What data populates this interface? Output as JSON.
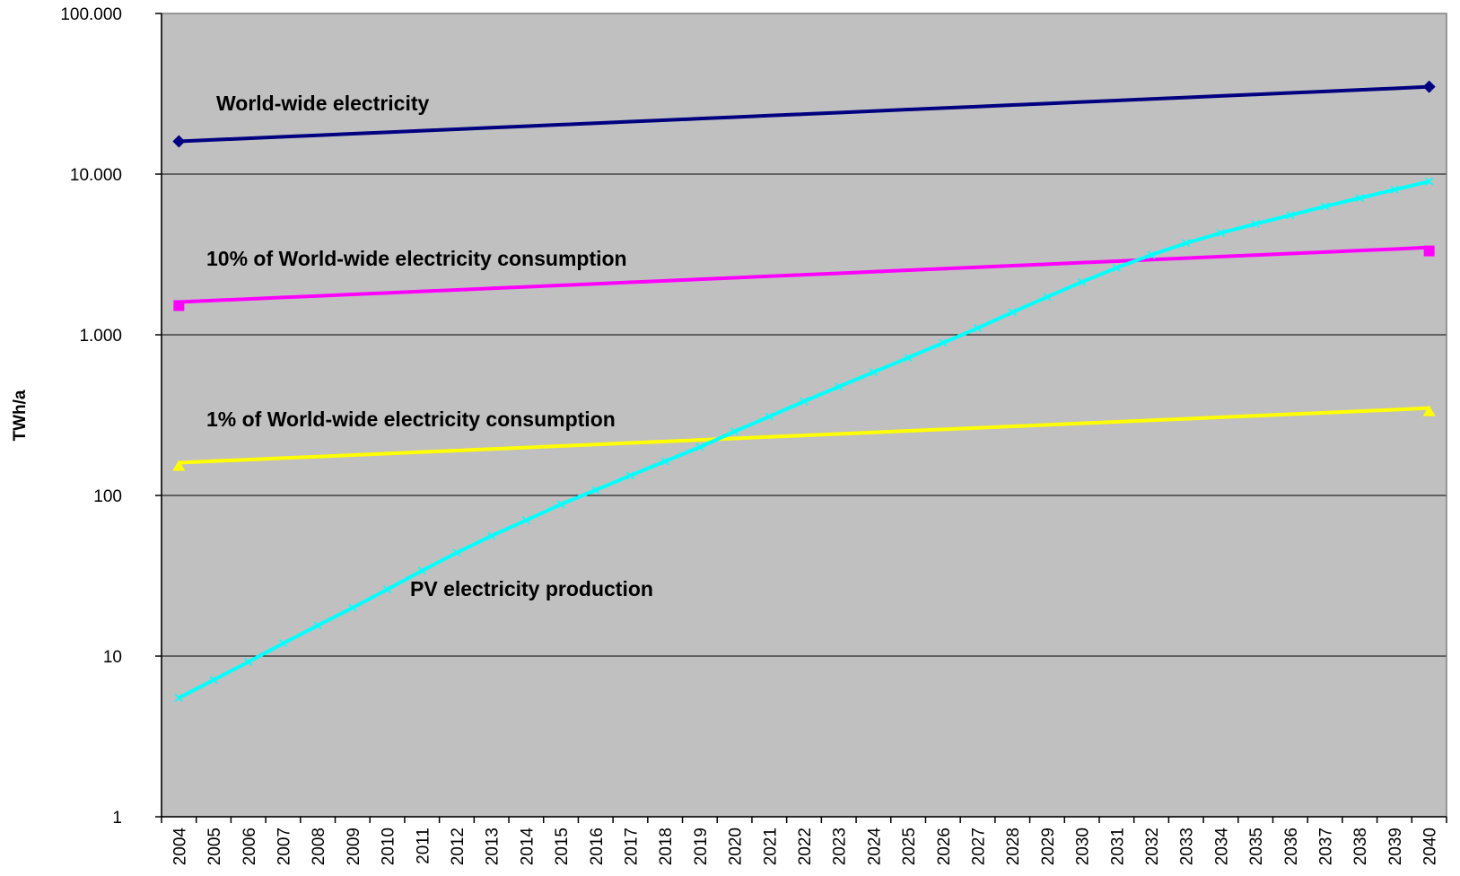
{
  "chart_data": {
    "type": "line",
    "title": "",
    "ylabel": "TWh/a",
    "xlabel": "",
    "yscale": "log",
    "ylim": [
      1,
      100000
    ],
    "ytick_values": [
      1,
      10,
      100,
      1000,
      10000,
      100000
    ],
    "ytick_labels": [
      "1",
      "10",
      "100",
      "1.000",
      "10.000",
      "100.000"
    ],
    "grid": "horizontal",
    "legend": "none",
    "categories": [
      "2004",
      "2005",
      "2006",
      "2007",
      "2008",
      "2009",
      "2010",
      "2011",
      "2012",
      "2013",
      "2014",
      "2015",
      "2016",
      "2017",
      "2018",
      "2019",
      "2020",
      "2021",
      "2022",
      "2023",
      "2024",
      "2025",
      "2026",
      "2027",
      "2028",
      "2029",
      "2030",
      "2031",
      "2032",
      "2033",
      "2034",
      "2035",
      "2036",
      "2037",
      "2038",
      "2039",
      "2040"
    ],
    "series": [
      {
        "name": "World-wide electricity",
        "color": "#000080",
        "marker": "diamond",
        "values": [
          16000,
          16350,
          16710,
          17070,
          17450,
          17830,
          18220,
          18620,
          19030,
          19450,
          19870,
          20310,
          20750,
          21210,
          21670,
          22150,
          22630,
          23130,
          23630,
          24150,
          24680,
          25230,
          25780,
          26340,
          26920,
          27510,
          28110,
          28730,
          29360,
          30010,
          30660,
          31330,
          32020,
          32720,
          33440,
          34180,
          35000
        ]
      },
      {
        "name": "10% of World-wide electricity consumption",
        "color": "#ff00ff",
        "marker": "square",
        "values": [
          1600,
          1635,
          1671,
          1707,
          1745,
          1783,
          1822,
          1862,
          1903,
          1945,
          1987,
          2031,
          2075,
          2121,
          2167,
          2215,
          2263,
          2313,
          2363,
          2415,
          2468,
          2523,
          2578,
          2634,
          2692,
          2751,
          2811,
          2873,
          2936,
          3001,
          3066,
          3133,
          3202,
          3272,
          3344,
          3418,
          3500
        ]
      },
      {
        "name": "1% of World-wide electricity consumption",
        "color": "#ffff00",
        "marker": "triangle",
        "values": [
          160,
          163.5,
          167.1,
          170.7,
          174.5,
          178.3,
          182.2,
          186.2,
          190.3,
          194.5,
          198.7,
          203.1,
          207.5,
          212.1,
          216.7,
          221.5,
          226.3,
          231.3,
          236.3,
          241.5,
          246.8,
          252.3,
          257.8,
          263.4,
          269.2,
          275.1,
          281.1,
          287.3,
          293.6,
          300.1,
          306.6,
          313.3,
          320.2,
          327.2,
          334.4,
          341.8,
          350
        ]
      },
      {
        "name": "PV electricity production",
        "color": "#00ffff",
        "marker": "x",
        "values": [
          5.5,
          7.1,
          9.2,
          12,
          15.5,
          20,
          26,
          34,
          44,
          56,
          70,
          88,
          108,
          133,
          163,
          200,
          250,
          310,
          385,
          475,
          585,
          720,
          890,
          1100,
          1380,
          1720,
          2130,
          2610,
          3140,
          3720,
          4300,
          4900,
          5550,
          6300,
          7100,
          8000,
          9000
        ]
      }
    ],
    "annotations": [
      {
        "text": "World-wide electricity",
        "series": "World-wide electricity"
      },
      {
        "text": "10% of World-wide electricity consumption",
        "series": "10% of World-wide electricity consumption"
      },
      {
        "text": "1% of World-wide electricity consumption",
        "series": "1% of World-wide electricity consumption"
      },
      {
        "text": "PV electricity production",
        "series": "PV electricity production"
      }
    ]
  }
}
